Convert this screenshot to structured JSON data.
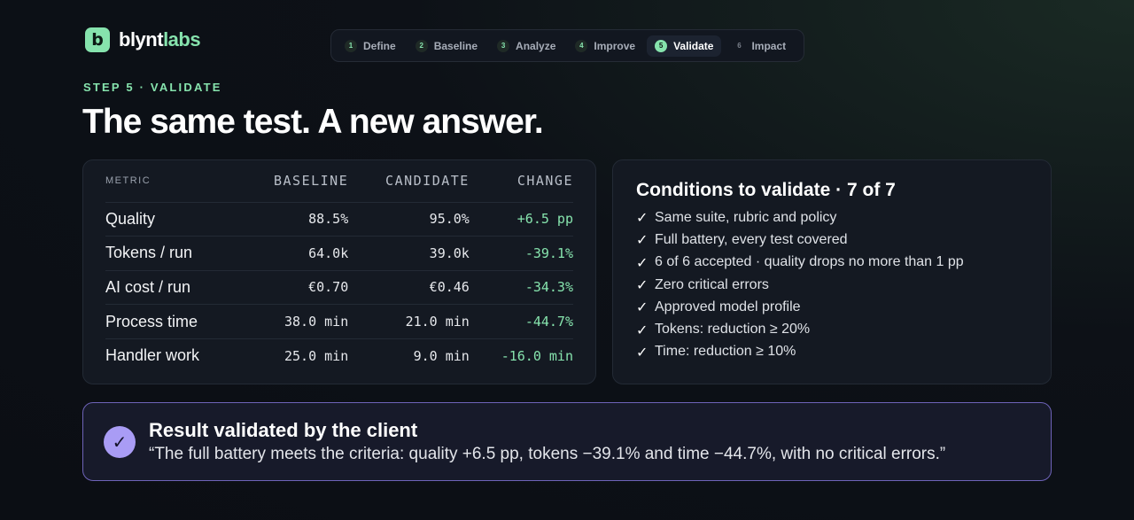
{
  "brand": {
    "name_part1": "blynt",
    "name_part2": "labs",
    "mark": "b"
  },
  "stepper": {
    "steps": [
      {
        "num": "1",
        "label": "Define"
      },
      {
        "num": "2",
        "label": "Baseline"
      },
      {
        "num": "3",
        "label": "Analyze"
      },
      {
        "num": "4",
        "label": "Improve"
      },
      {
        "num": "5",
        "label": "Validate"
      },
      {
        "num": "6",
        "label": "Impact"
      }
    ],
    "active_index": 4
  },
  "header": {
    "eyebrow": "STEP 5 · VALIDATE",
    "title": "The same test. A new answer."
  },
  "metrics_table": {
    "columns": {
      "metric": "METRIC",
      "baseline": "BASELINE",
      "candidate": "CANDIDATE",
      "change": "CHANGE"
    },
    "rows": [
      {
        "metric": "Quality",
        "baseline": "88.5%",
        "candidate": "95.0%",
        "change": "+6.5 pp"
      },
      {
        "metric": "Tokens / run",
        "baseline": "64.0k",
        "candidate": "39.0k",
        "change": "-39.1%"
      },
      {
        "metric": "AI cost / run",
        "baseline": "€0.70",
        "candidate": "€0.46",
        "change": "-34.3%"
      },
      {
        "metric": "Process time",
        "baseline": "38.0 min",
        "candidate": "21.0 min",
        "change": "-44.7%"
      },
      {
        "metric": "Handler work",
        "baseline": "25.0 min",
        "candidate": "9.0 min",
        "change": "-16.0 min"
      }
    ]
  },
  "conditions": {
    "title": "Conditions to validate · 7 of 7",
    "check_glyph": "✓",
    "items": [
      "Same suite, rubric and policy",
      "Full battery, every test covered",
      "6 of 6 accepted · quality drops no more than 1 pp",
      "Zero critical errors",
      "Approved model profile",
      "Tokens: reduction ≥ 20%",
      "Time: reduction ≥ 10%"
    ]
  },
  "result": {
    "icon_glyph": "✓",
    "title": "Result validated by the client",
    "quote": "“The full battery meets the criteria: quality +6.5 pp, tokens −39.1% and time −44.7%, with no critical errors.”"
  },
  "colors": {
    "accent_green": "#86e3ad",
    "accent_purple": "#a99cf5",
    "background": "#0d1117"
  }
}
